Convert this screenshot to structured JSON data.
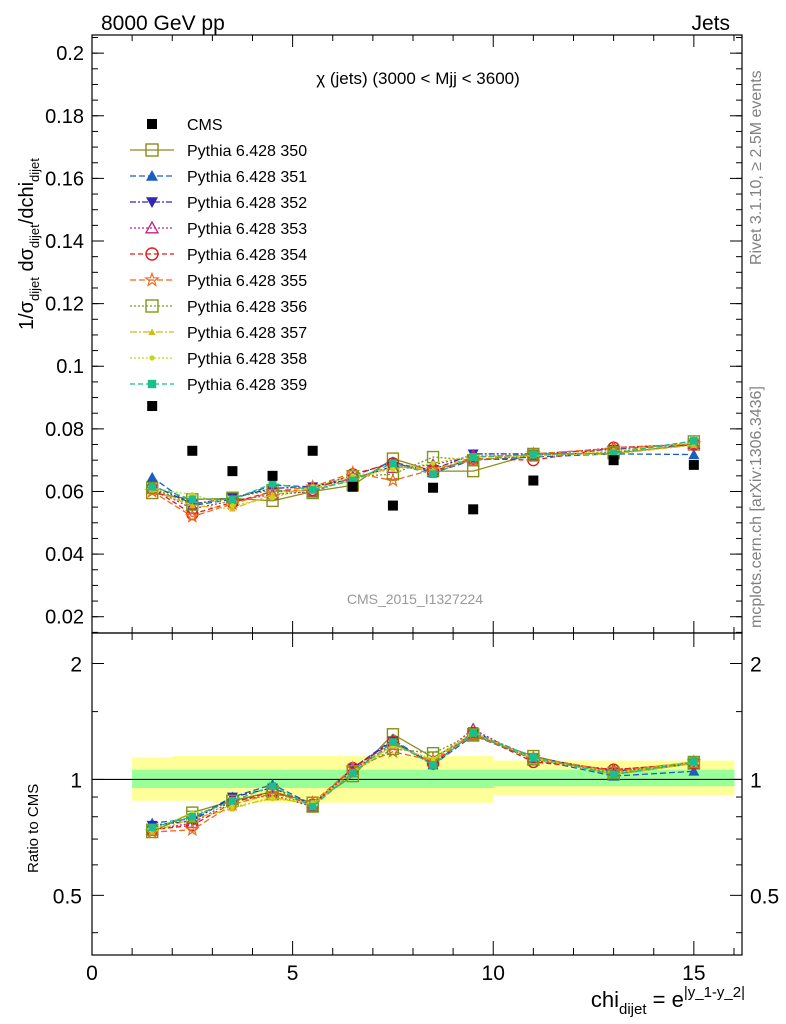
{
  "header": {
    "left": "8000 GeV pp",
    "right": "Jets",
    "side_top": "Rivet 3.1.10, ≥ 2.5M events",
    "side_bottom": "mcplots.cern.ch [arXiv:1306.3436]"
  },
  "chart_data": [
    {
      "type": "scatter",
      "panel": "main",
      "title": "χ (jets) (3000 < Mjj < 3600)",
      "watermark": "CMS_2015_I1327224",
      "ylabel_main": "1/σ",
      "ylabel_sub": "dijet",
      "ylabel_mid": " dσ",
      "ylabel_sub2": "dijet",
      "ylabel_end": "/dchi",
      "ylabel_sub3": "dijet",
      "xlim": [
        0,
        16.2
      ],
      "ylim": [
        0.0148,
        0.2058
      ],
      "yticks": [
        0.02,
        0.04,
        0.06,
        0.08,
        0.1,
        0.12,
        0.14,
        0.16,
        0.18,
        0.2
      ],
      "ytick_labels": [
        "0.02",
        "0.04",
        "0.06",
        "0.08",
        "0.1",
        "0.12",
        "0.14",
        "0.16",
        "0.18",
        "0.2"
      ],
      "x": [
        1.5,
        2.5,
        3.5,
        4.5,
        5.5,
        6.5,
        7.5,
        8.5,
        9.5,
        11,
        13,
        15
      ],
      "legend_placement": "top-left",
      "data": {
        "name": "CMS",
        "color": "#000000",
        "values": [
          0.0873,
          0.073,
          0.0665,
          0.065,
          0.073,
          0.0615,
          0.0555,
          0.0612,
          0.0543,
          0.0635,
          0.07,
          0.0685
        ]
      },
      "series": [
        {
          "name": "Pythia 6.428 350",
          "color": "#8c8c1a",
          "marker": "square-open",
          "dash": "",
          "values": [
            0.0595,
            0.0575,
            0.0578,
            0.057,
            0.06,
            0.062,
            0.0705,
            0.0665,
            0.0665,
            0.072,
            0.0722,
            0.075
          ]
        },
        {
          "name": "Pythia 6.428 351",
          "color": "#1a5fbf",
          "marker": "triangle-up",
          "dash": "6,3",
          "values": [
            0.0645,
            0.0555,
            0.0575,
            0.062,
            0.0615,
            0.065,
            0.0695,
            0.066,
            0.07,
            0.071,
            0.072,
            0.0718
          ]
        },
        {
          "name": "Pythia 6.428 352",
          "color": "#3326b3",
          "marker": "triangle-down",
          "dash": "6,2,2,2",
          "values": [
            0.062,
            0.056,
            0.058,
            0.061,
            0.0615,
            0.064,
            0.068,
            0.067,
            0.072,
            0.072,
            0.0735,
            0.075
          ]
        },
        {
          "name": "Pythia 6.428 353",
          "color": "#bf2680",
          "marker": "triangle-open",
          "dash": "2,2",
          "values": [
            0.061,
            0.0545,
            0.057,
            0.059,
            0.06,
            0.0645,
            0.0675,
            0.0685,
            0.0715,
            0.0715,
            0.074,
            0.0752
          ]
        },
        {
          "name": "Pythia 6.428 354",
          "color": "#e01a1a",
          "marker": "circle-open",
          "dash": "5,3",
          "values": [
            0.061,
            0.0528,
            0.0565,
            0.06,
            0.0605,
            0.0655,
            0.069,
            0.0665,
            0.0705,
            0.07,
            0.074,
            0.075
          ]
        },
        {
          "name": "Pythia 6.428 355",
          "color": "#f06a1a",
          "marker": "star-open",
          "dash": "6,3",
          "values": [
            0.06,
            0.052,
            0.056,
            0.06,
            0.0615,
            0.066,
            0.0635,
            0.067,
            0.07,
            0.072,
            0.0738,
            0.0752
          ]
        },
        {
          "name": "Pythia 6.428 356",
          "color": "#7a9a1a",
          "marker": "square-open",
          "dash": "2,2",
          "values": [
            0.0612,
            0.0558,
            0.058,
            0.0605,
            0.0595,
            0.0648,
            0.0655,
            0.071,
            0.07,
            0.0715,
            0.0725,
            0.076
          ]
        },
        {
          "name": "Pythia 6.428 357",
          "color": "#d4b91a",
          "marker": "tri-small",
          "dash": "7,2,2,2",
          "values": [
            0.0605,
            0.0555,
            0.0545,
            0.059,
            0.061,
            0.0635,
            0.068,
            0.067,
            0.071,
            0.0715,
            0.072,
            0.0748
          ]
        },
        {
          "name": "Pythia 6.428 358",
          "color": "#c4d91a",
          "marker": "dot-small",
          "dash": "2,2",
          "values": [
            0.061,
            0.059,
            0.0555,
            0.058,
            0.0615,
            0.065,
            0.067,
            0.069,
            0.0715,
            0.0712,
            0.073,
            0.0755
          ]
        },
        {
          "name": "Pythia 6.428 359",
          "color": "#1abf8c",
          "marker": "square-small",
          "dash": "5,3",
          "values": [
            0.0615,
            0.0575,
            0.0575,
            0.0625,
            0.0605,
            0.0635,
            0.069,
            0.0655,
            0.071,
            0.0718,
            0.0722,
            0.0762
          ]
        }
      ]
    },
    {
      "type": "line",
      "panel": "ratio",
      "ylabel": "Ratio to CMS",
      "xlabel_main": "chi",
      "xlabel_sub": "dijet",
      "xlabel_mid": " = e",
      "xlabel_sup": "|y_1-y_2|",
      "xlim": [
        0,
        16.2
      ],
      "ylim_log": [
        0.35,
        2.4
      ],
      "yticks": [
        0.5,
        1,
        2
      ],
      "ytick_labels": [
        "0.5",
        "1",
        "2"
      ],
      "xticks": [
        0,
        5,
        10,
        15
      ],
      "xtick_labels": [
        "0",
        "5",
        "10",
        "15"
      ],
      "x": [
        1.5,
        2.5,
        3.5,
        4.5,
        5.5,
        6.5,
        7.5,
        8.5,
        9.5,
        11,
        13,
        15
      ],
      "x_edges": [
        1,
        2,
        3,
        4,
        5,
        6,
        7,
        8,
        9,
        10,
        12,
        14,
        16
      ],
      "band_inner": {
        "color": "#99ff99",
        "lo": [
          0.95,
          0.95,
          0.95,
          0.95,
          0.95,
          0.95,
          0.95,
          0.95,
          0.95,
          0.96,
          0.96,
          0.96
        ],
        "hi": [
          1.06,
          1.06,
          1.06,
          1.06,
          1.06,
          1.06,
          1.06,
          1.06,
          1.06,
          1.06,
          1.06,
          1.06
        ]
      },
      "band_outer": {
        "color": "#ffff99",
        "lo": [
          0.88,
          0.88,
          0.87,
          0.87,
          0.87,
          0.87,
          0.87,
          0.87,
          0.87,
          0.91,
          0.91,
          0.91
        ],
        "hi": [
          1.14,
          1.15,
          1.15,
          1.15,
          1.15,
          1.15,
          1.15,
          1.15,
          1.15,
          1.12,
          1.12,
          1.12
        ]
      },
      "ratio_series": [
        {
          "name": "Pythia 6.428 350",
          "values": [
            0.73,
            0.82,
            0.88,
            0.93,
            0.87,
            1.02,
            1.31,
            1.14,
            1.3,
            1.15,
            1.03,
            1.1
          ]
        },
        {
          "name": "Pythia 6.428 351",
          "values": [
            0.77,
            0.79,
            0.9,
            0.97,
            0.86,
            1.07,
            1.27,
            1.09,
            1.3,
            1.13,
            1.02,
            1.05
          ]
        },
        {
          "name": "Pythia 6.428 352",
          "values": [
            0.76,
            0.78,
            0.9,
            0.95,
            0.86,
            1.07,
            1.26,
            1.09,
            1.33,
            1.14,
            1.05,
            1.1
          ]
        },
        {
          "name": "Pythia 6.428 353",
          "values": [
            0.74,
            0.77,
            0.88,
            0.91,
            0.85,
            1.06,
            1.23,
            1.12,
            1.35,
            1.12,
            1.06,
            1.1
          ]
        },
        {
          "name": "Pythia 6.428 354",
          "values": [
            0.74,
            0.76,
            0.87,
            0.93,
            0.86,
            1.07,
            1.25,
            1.1,
            1.32,
            1.11,
            1.06,
            1.1
          ]
        },
        {
          "name": "Pythia 6.428 355",
          "values": [
            0.73,
            0.74,
            0.86,
            0.92,
            0.87,
            1.07,
            1.18,
            1.12,
            1.3,
            1.14,
            1.05,
            1.11
          ]
        },
        {
          "name": "Pythia 6.428 356",
          "values": [
            0.74,
            0.8,
            0.88,
            0.93,
            0.85,
            1.05,
            1.2,
            1.17,
            1.31,
            1.13,
            1.04,
            1.11
          ]
        },
        {
          "name": "Pythia 6.428 357",
          "values": [
            0.73,
            0.79,
            0.84,
            0.9,
            0.86,
            1.04,
            1.23,
            1.12,
            1.32,
            1.14,
            1.03,
            1.1
          ]
        },
        {
          "name": "Pythia 6.428 358",
          "values": [
            0.74,
            0.82,
            0.85,
            0.89,
            0.87,
            1.05,
            1.22,
            1.13,
            1.33,
            1.13,
            1.04,
            1.11
          ]
        },
        {
          "name": "Pythia 6.428 359",
          "values": [
            0.75,
            0.8,
            0.88,
            0.96,
            0.85,
            1.04,
            1.25,
            1.09,
            1.32,
            1.14,
            1.03,
            1.11
          ]
        }
      ]
    }
  ]
}
